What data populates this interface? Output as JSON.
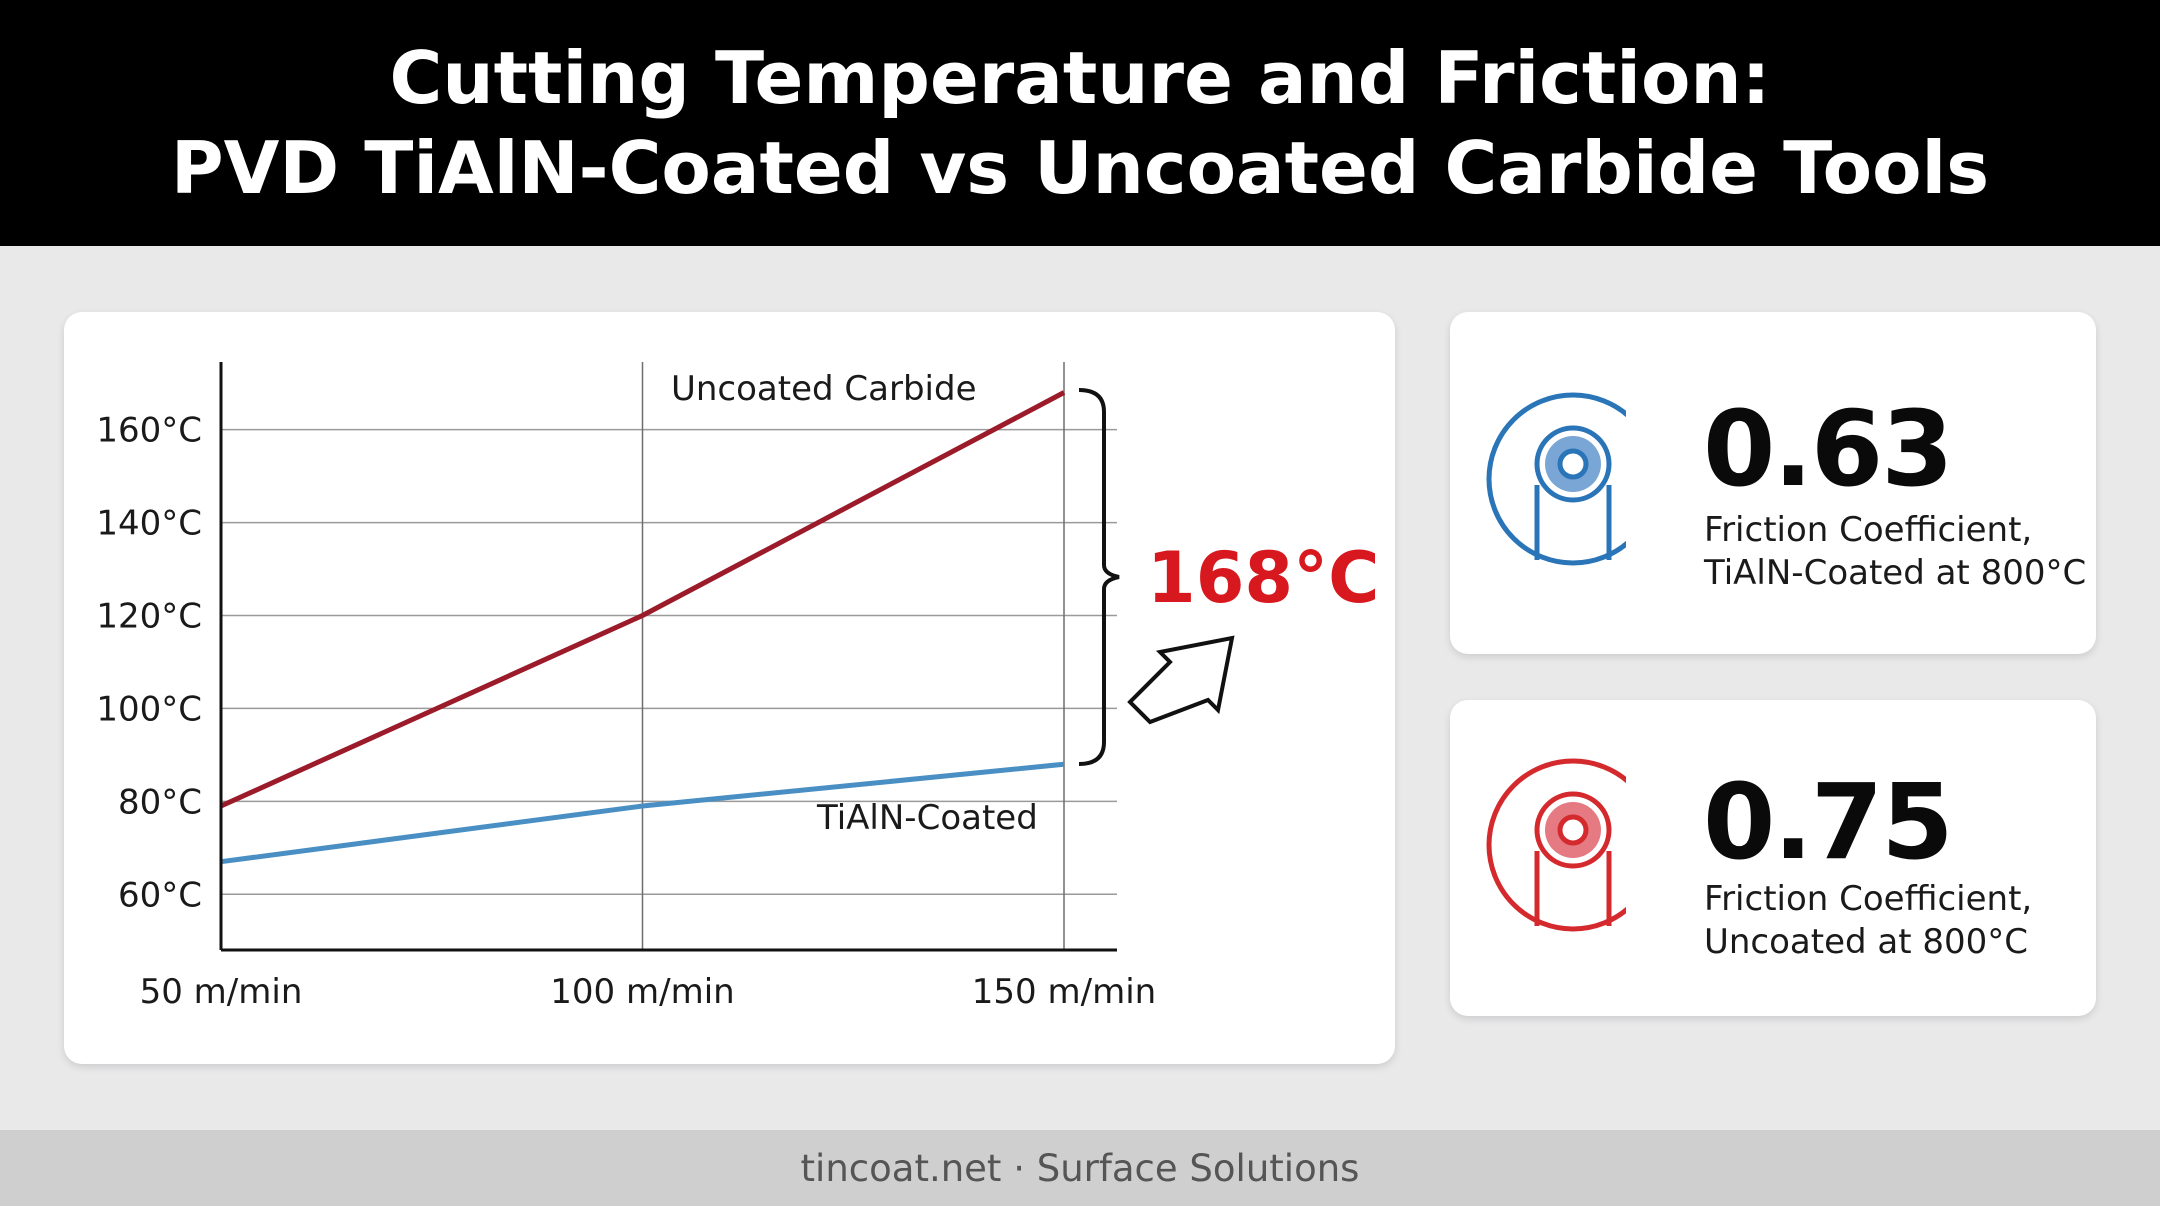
{
  "header": {
    "title_line1": "Cutting Temperature and Friction:",
    "title_line2": "PVD TiAlN-Coated vs Uncoated Carbide Tools"
  },
  "chart_data": {
    "type": "line",
    "x": [
      50,
      100,
      150
    ],
    "x_tick_labels": [
      "50 m/min",
      "100 m/min",
      "150 m/min"
    ],
    "y_tick_values": [
      60,
      80,
      100,
      120,
      140,
      160
    ],
    "y_tick_labels": [
      "60°C",
      "80°C",
      "100°C",
      "120°C",
      "140°C",
      "160°C"
    ],
    "xlim": [
      50,
      150
    ],
    "ylim": [
      48,
      175
    ],
    "grid": true,
    "series": [
      {
        "name": "Uncoated Carbide",
        "values": [
          79,
          120,
          168
        ],
        "color": "#9b1b2a"
      },
      {
        "name": "TiAlN-Coated",
        "values": [
          67,
          79,
          88
        ],
        "color": "#4a8fc4"
      }
    ],
    "annotation": {
      "text": "168°C",
      "color": "#d7191f"
    }
  },
  "stats": [
    {
      "value": "0.63",
      "label_line1": "Friction Coefficient,",
      "label_line2": "TiAlN-Coated at 800°C",
      "color": "#2a74b8",
      "fill": "#7aa6d6",
      "icon": "coated-tool-icon"
    },
    {
      "value": "0.75",
      "label_line1": "Friction Coefficient,",
      "label_line2": "Uncoated at 800°C",
      "color": "#d42a2e",
      "fill": "#e57a82",
      "icon": "uncoated-tool-icon"
    }
  ],
  "footer": {
    "text": "tincoat.net · Surface Solutions"
  }
}
